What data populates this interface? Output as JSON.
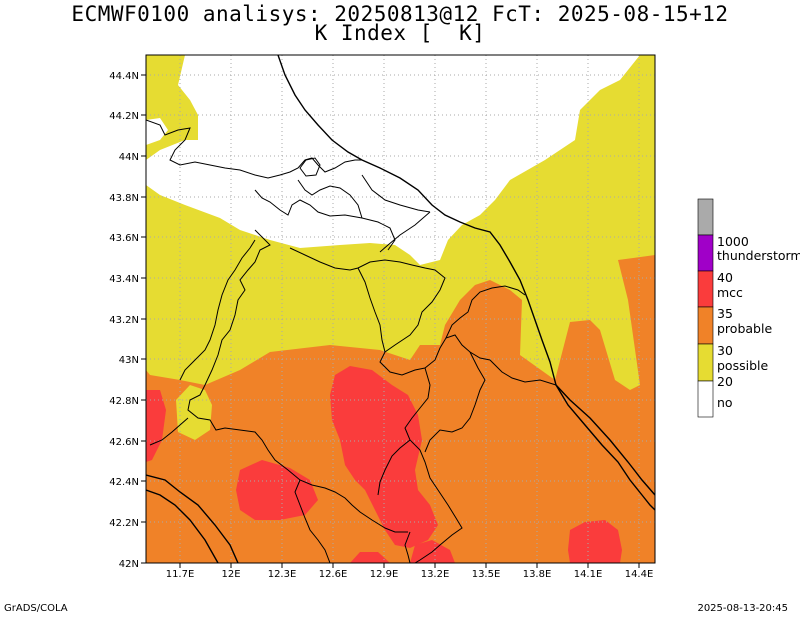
{
  "title_line1": "ECMWF0100 analisys: 20250813@12 FcT: 2025-08-15+12",
  "title_line2": "K Index [  K]",
  "footer_left": "GrADS/COLA",
  "footer_right": "2025-08-13-20:45",
  "axes": {
    "lon_ticks": [
      "11.7E",
      "12E",
      "12.3E",
      "12.6E",
      "12.9E",
      "13.2E",
      "13.5E",
      "13.8E",
      "14.1E",
      "14.4E"
    ],
    "lat_ticks": [
      "42N",
      "42.2N",
      "42.4N",
      "42.6N",
      "42.8N",
      "43N",
      "43.2N",
      "43.4N",
      "43.6N",
      "43.8N",
      "44N",
      "44.2N",
      "44.4N"
    ],
    "lon_range": [
      11.55,
      14.5
    ],
    "lat_range": [
      42.0,
      44.5
    ],
    "grid": "dotted"
  },
  "legend": {
    "thresholds": [
      "1000",
      "40",
      "35",
      "30",
      "20"
    ],
    "labels": [
      "thunderstorm",
      "mcc",
      "probable",
      "possible",
      "no"
    ],
    "colors": {
      "undef": "#aaaaaa",
      "thunderstorm": "#a000c8",
      "mcc": "#fa3c3c",
      "probable": "#f08228",
      "possible": "#e6dc32",
      "no": "#ffffff"
    }
  },
  "colors": {
    "border": "#000000",
    "grid": "#aaaaaa"
  }
}
